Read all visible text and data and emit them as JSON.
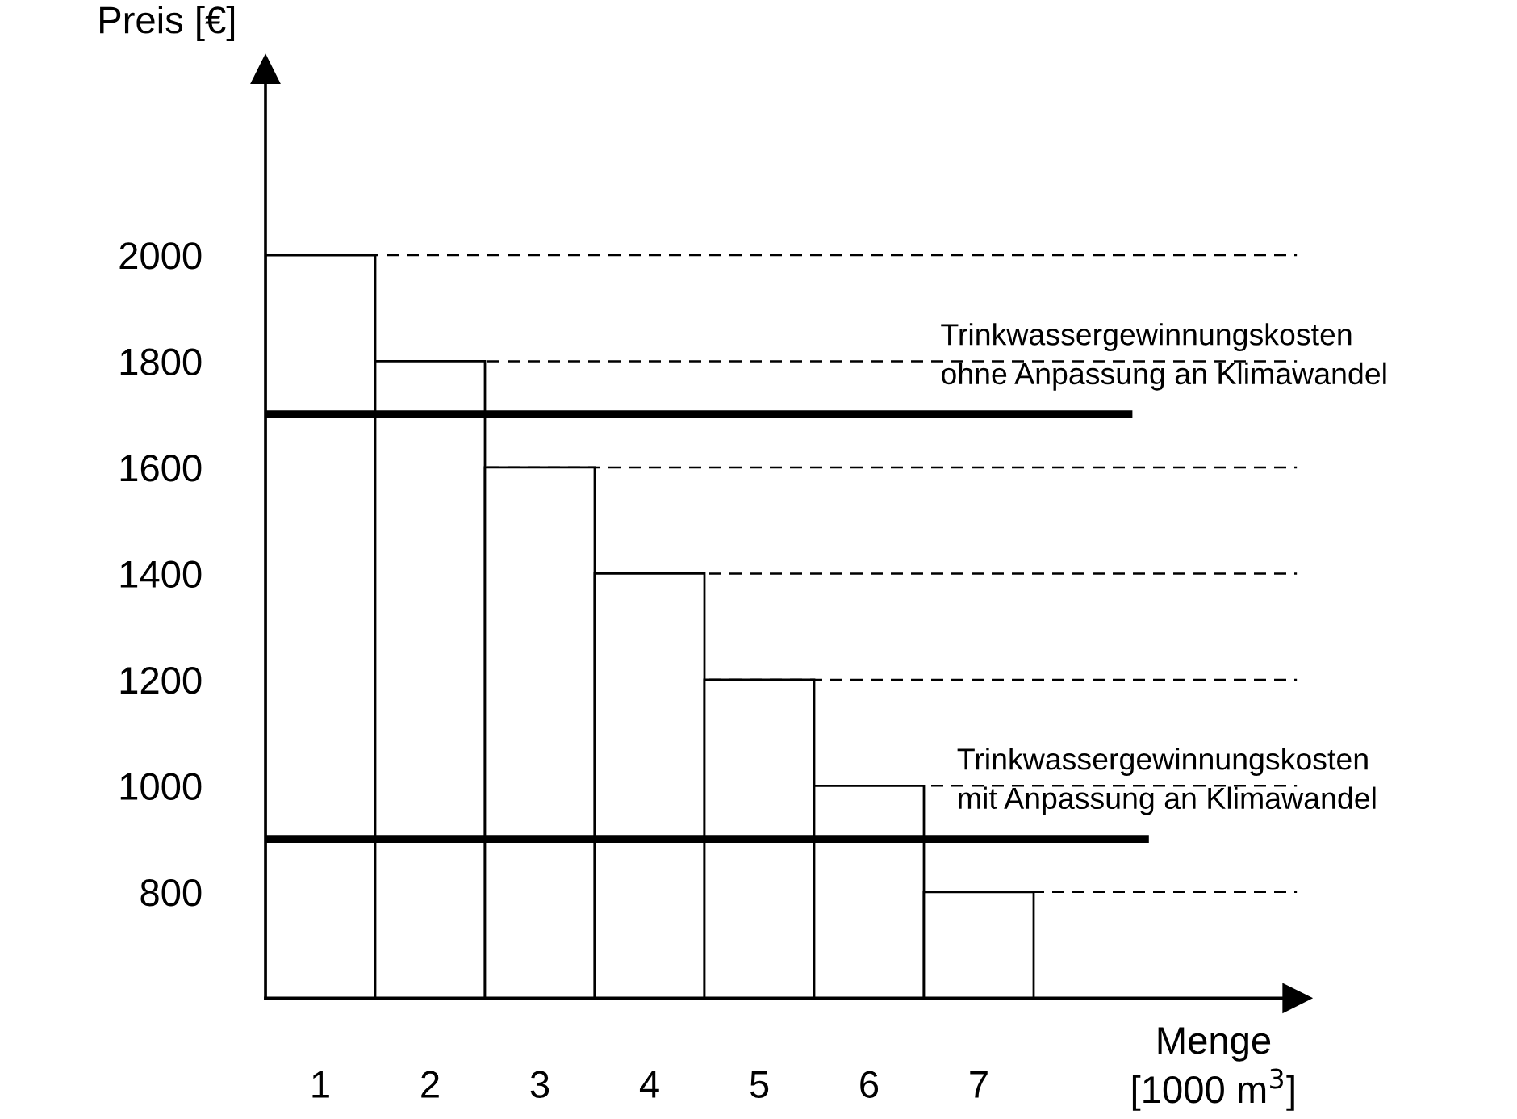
{
  "chart_data": {
    "type": "bar",
    "ylabel": "Preis [€]",
    "xlabel": "Menge\n[1000 m$^{3}$]",
    "categories": [
      "1",
      "2",
      "3",
      "4",
      "5",
      "6",
      "7"
    ],
    "values": [
      2000,
      1800,
      1600,
      1400,
      1200,
      1000,
      800
    ],
    "color": "#ffffff",
    "ylim": [
      600,
      2350
    ],
    "yticks": [
      800,
      1000,
      1200,
      1400,
      1600,
      1800,
      2000
    ],
    "grid": "y",
    "ref_lines": [
      {
        "axis": "y",
        "value": 1700,
        "label": "Trinkwassergewinnungskosten\nohne Anpassung an Klimawandel",
        "color": "#000000"
      },
      {
        "axis": "y",
        "value": 900,
        "label": "Trinkwassergewinnungskosten\nmit Anpassung an Klimawandel",
        "color": "#000000"
      }
    ]
  }
}
